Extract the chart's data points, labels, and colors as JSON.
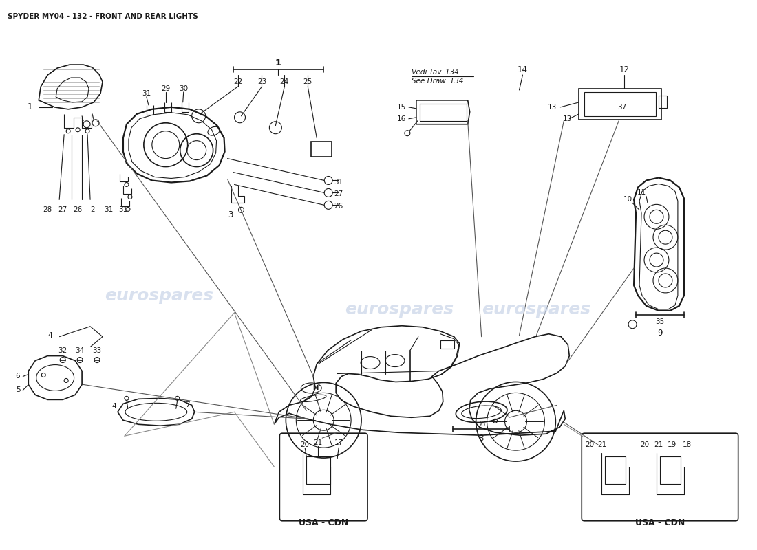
{
  "title": "SPYDER MY04 - 132 - FRONT AND REAR LIGHTS",
  "title_fontsize": 7.5,
  "background_color": "#ffffff",
  "text_color": "#000000",
  "line_color": "#1a1a1a",
  "watermark_color": "#c8d4e8",
  "vedi_tav": "Vedi Tav. 134",
  "see_draw": "See Draw. 134",
  "usa_cdn": "USA - CDN",
  "dpi": 100,
  "figw": 11.0,
  "figh": 8.0
}
